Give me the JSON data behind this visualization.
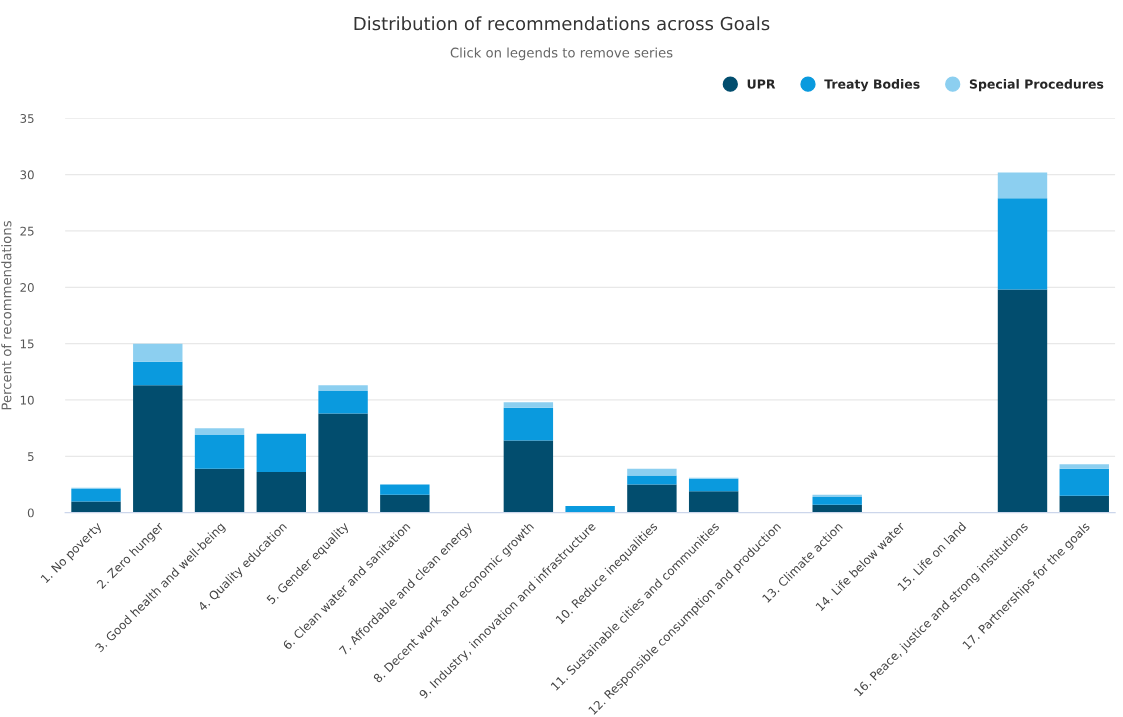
{
  "chart_data": {
    "type": "bar",
    "title": "Distribution of recommendations across Goals",
    "subtitle": "Click on legends to remove series",
    "ylabel": "Percent of recommendations",
    "categories": [
      "1. No poverty",
      "2. Zero hunger",
      "3. Good health and well-being",
      "4. Quality education",
      "5. Gender equality",
      "6. Clean water and sanitation",
      "7. Affordable and clean energy",
      "8. Decent work and economic growth",
      "9. Industry, innovation and infrastructure",
      "10. Reduce inequalities",
      "11. Sustainable cities and communities",
      "12. Responsible consumption and production",
      "13. Climate action",
      "14. Life below water",
      "15. Life on land",
      "16. Peace, justice and strong institutions",
      "17. Partnerships for the goals"
    ],
    "series": [
      {
        "name": "UPR",
        "color": "#024d6e",
        "values": [
          1.0,
          11.3,
          3.9,
          3.6,
          8.8,
          1.6,
          0,
          6.4,
          0,
          2.5,
          1.9,
          0,
          0.7,
          0,
          0,
          19.8,
          1.5
        ]
      },
      {
        "name": "Treaty Bodies",
        "color": "#0a9ade",
        "values": [
          1.1,
          2.1,
          3.0,
          3.4,
          2.0,
          0.9,
          0,
          2.9,
          0.6,
          0.8,
          1.1,
          0,
          0.7,
          0,
          0,
          8.1,
          2.4
        ]
      },
      {
        "name": "Special Procedures",
        "color": "#8ccff0",
        "values": [
          0.1,
          1.6,
          0.6,
          0,
          0.5,
          0,
          0,
          0.5,
          0,
          0.6,
          0.1,
          0,
          0.2,
          0,
          0,
          2.3,
          0.4
        ]
      }
    ],
    "stacked": true,
    "ylim": [
      0,
      35
    ],
    "yticks": [
      0,
      5,
      10,
      15,
      20,
      25,
      30,
      35
    ],
    "grid": "y",
    "legend": "top right",
    "marker": "circle"
  }
}
